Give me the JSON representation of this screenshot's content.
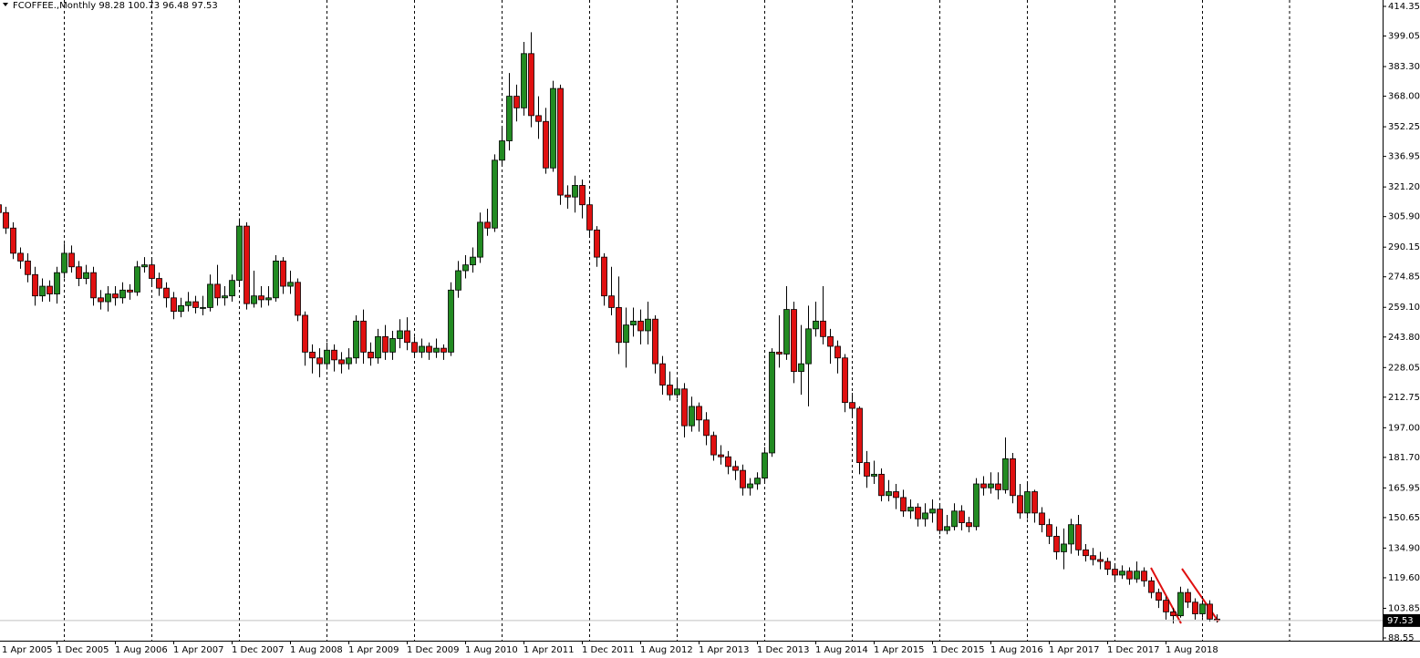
{
  "chart_data": {
    "type": "candlestick",
    "title": "FCOFFEE.,Monthly  98.28 100.73 96.48 97.53",
    "up_color": "#228b22",
    "down_color": "#e01010",
    "categories": [
      "1 Apr 2005",
      null,
      null,
      null,
      null,
      null,
      null,
      null,
      "1 Dec 2005",
      null,
      null,
      null,
      null,
      null,
      null,
      null,
      "1 Aug 2006",
      null,
      null,
      null,
      null,
      null,
      null,
      null,
      "1 Apr 2007",
      null,
      null,
      null,
      null,
      null,
      null,
      null,
      "1 Dec 2007",
      null,
      null,
      null,
      null,
      null,
      null,
      null,
      "1 Aug 2008",
      null,
      null,
      null,
      null,
      null,
      null,
      null,
      "1 Apr 2009",
      null,
      null,
      null,
      null,
      null,
      null,
      null,
      "1 Dec 2009",
      null,
      null,
      null,
      null,
      null,
      null,
      null,
      "1 Aug 2010",
      null,
      null,
      null,
      null,
      null,
      null,
      null,
      "1 Apr 2011",
      null,
      null,
      null,
      null,
      null,
      null,
      null,
      "1 Dec 2011",
      null,
      null,
      null,
      null,
      null,
      null,
      null,
      "1 Aug 2012",
      null,
      null,
      null,
      null,
      null,
      null,
      null,
      "1 Apr 2013",
      null,
      null,
      null,
      null,
      null,
      null,
      null,
      "1 Dec 2013",
      null,
      null,
      null,
      null,
      null,
      null,
      null,
      "1 Aug 2014",
      null,
      null,
      null,
      null,
      null,
      null,
      null,
      "1 Apr 2015",
      null,
      null,
      null,
      null,
      null,
      null,
      null,
      "1 Dec 2015",
      null,
      null,
      null,
      null,
      null,
      null,
      null,
      "1 Aug 2016",
      null,
      null,
      null,
      null,
      null,
      null,
      null,
      "1 Apr 2017",
      null,
      null,
      null,
      null,
      null,
      null,
      null,
      "1 Dec 2017",
      null,
      null,
      null,
      null,
      null,
      null,
      null,
      "1 Aug 2018",
      null,
      null,
      null,
      null,
      null,
      null,
      null
    ],
    "open": [
      312,
      308,
      300,
      287,
      283,
      276,
      265,
      270,
      266,
      277,
      287,
      280,
      274,
      277,
      264,
      262,
      266,
      264,
      268,
      267,
      280,
      281,
      274,
      269,
      264,
      257,
      260,
      262,
      259,
      259,
      271,
      264,
      265,
      273,
      301,
      261,
      265,
      263,
      264,
      283,
      270,
      272,
      255,
      236,
      233,
      230,
      237,
      232,
      230,
      233,
      252,
      236,
      233,
      244,
      236,
      243,
      247,
      241,
      236,
      239,
      236,
      238,
      236,
      268,
      278,
      281,
      285,
      303,
      300,
      335,
      345,
      368,
      362,
      390,
      358,
      355,
      331,
      372,
      317,
      316,
      322,
      312,
      299,
      285,
      265,
      259,
      241,
      250,
      252,
      247,
      253,
      230,
      219,
      214,
      217,
      198,
      208,
      201,
      193,
      183,
      182,
      177,
      175,
      166,
      168,
      171,
      184,
      236,
      235,
      258,
      226,
      230,
      248,
      252,
      244,
      239,
      233,
      210,
      207,
      179,
      172,
      173,
      162,
      164,
      161,
      154,
      156,
      150,
      153,
      155,
      144,
      146,
      154,
      148,
      146,
      168,
      166,
      168,
      165,
      181,
      162,
      153,
      164,
      153,
      147,
      141,
      133,
      137,
      147,
      134,
      131,
      129,
      128,
      124,
      121,
      123,
      119,
      123,
      118,
      112,
      108,
      102,
      100,
      112,
      107,
      101,
      106,
      98.28
    ],
    "high": [
      315,
      311,
      303,
      290,
      287,
      280,
      274,
      273,
      280,
      292,
      291,
      283,
      281,
      280,
      268,
      270,
      270,
      272,
      271,
      283,
      285,
      284,
      277,
      272,
      267,
      264,
      267,
      265,
      265,
      276,
      281,
      270,
      276,
      305,
      303,
      278,
      270,
      270,
      286,
      285,
      278,
      274,
      257,
      240,
      238,
      241,
      240,
      236,
      238,
      255,
      258,
      241,
      248,
      250,
      247,
      253,
      254,
      244,
      243,
      241,
      243,
      240,
      272,
      283,
      286,
      290,
      308,
      310,
      338,
      352,
      380,
      374,
      396,
      401,
      368,
      362,
      376,
      374,
      322,
      327,
      325,
      316,
      301,
      287,
      280,
      275,
      259,
      259,
      258,
      262,
      255,
      234,
      226,
      222,
      220,
      213,
      210,
      205,
      195,
      188,
      185,
      180,
      178,
      171,
      174,
      187,
      238,
      255,
      270,
      262,
      250,
      260,
      262,
      270,
      248,
      242,
      235,
      215,
      208,
      185,
      180,
      176,
      170,
      168,
      165,
      160,
      158,
      158,
      160,
      157,
      152,
      158,
      157,
      151,
      171,
      172,
      174,
      174,
      192,
      184,
      168,
      168,
      165,
      156,
      150,
      146,
      145,
      150,
      152,
      137,
      135,
      133,
      130,
      126,
      126,
      125,
      128,
      125,
      120,
      114,
      110,
      104,
      115,
      114,
      109,
      108,
      108,
      100.73
    ],
    "low": [
      304,
      297,
      284,
      279,
      272,
      260,
      262,
      262,
      261,
      274,
      277,
      270,
      271,
      260,
      258,
      257,
      260,
      261,
      263,
      265,
      277,
      270,
      265,
      259,
      253,
      254,
      257,
      256,
      255,
      257,
      260,
      260,
      262,
      270,
      258,
      259,
      259,
      260,
      262,
      266,
      266,
      252,
      229,
      225,
      223,
      227,
      226,
      225,
      227,
      230,
      230,
      229,
      230,
      232,
      232,
      238,
      237,
      233,
      233,
      232,
      233,
      232,
      234,
      264,
      274,
      277,
      282,
      296,
      298,
      332,
      340,
      355,
      358,
      352,
      346,
      328,
      329,
      312,
      310,
      308,
      305,
      296,
      280,
      260,
      255,
      235,
      228,
      244,
      240,
      240,
      225,
      214,
      211,
      212,
      192,
      195,
      195,
      188,
      180,
      178,
      173,
      170,
      162,
      162,
      165,
      168,
      182,
      228,
      232,
      220,
      214,
      208,
      244,
      240,
      230,
      225,
      205,
      202,
      173,
      166,
      168,
      159,
      159,
      155,
      151,
      150,
      146,
      146,
      148,
      142,
      142,
      144,
      144,
      143,
      144,
      162,
      163,
      160,
      163,
      158,
      150,
      150,
      148,
      143,
      137,
      129,
      124,
      132,
      131,
      128,
      126,
      124,
      121,
      118,
      119,
      116,
      117,
      115,
      109,
      104,
      98,
      96,
      99,
      104,
      98,
      99,
      97,
      96.48
    ],
    "close": [
      308,
      300,
      287,
      283,
      276,
      265,
      270,
      266,
      277,
      287,
      280,
      274,
      277,
      264,
      262,
      266,
      264,
      268,
      267,
      280,
      281,
      274,
      269,
      264,
      257,
      260,
      262,
      259,
      259,
      271,
      264,
      265,
      273,
      301,
      261,
      265,
      263,
      264,
      283,
      270,
      272,
      255,
      236,
      233,
      230,
      237,
      232,
      230,
      233,
      252,
      236,
      233,
      244,
      236,
      243,
      247,
      241,
      236,
      239,
      236,
      238,
      236,
      268,
      278,
      281,
      285,
      303,
      300,
      335,
      345,
      368,
      362,
      390,
      358,
      355,
      331,
      372,
      317,
      316,
      322,
      312,
      299,
      285,
      265,
      259,
      241,
      250,
      252,
      247,
      253,
      230,
      219,
      214,
      217,
      198,
      208,
      201,
      193,
      183,
      182,
      177,
      175,
      166,
      168,
      171,
      184,
      236,
      235,
      258,
      226,
      230,
      248,
      252,
      244,
      239,
      233,
      210,
      207,
      179,
      172,
      173,
      162,
      164,
      161,
      154,
      156,
      150,
      153,
      155,
      144,
      146,
      154,
      148,
      146,
      168,
      166,
      168,
      165,
      181,
      162,
      153,
      164,
      153,
      147,
      141,
      133,
      137,
      147,
      134,
      131,
      129,
      128,
      124,
      121,
      123,
      119,
      123,
      118,
      112,
      108,
      102,
      100,
      112,
      107,
      101,
      106,
      98.28,
      97.53
    ],
    "ylim": [
      88.55,
      414.35
    ],
    "yticks": [
      414.35,
      399.05,
      {
        "value": 383.3,
        "label": "383.30"
      },
      {
        "value": 368,
        "label": "368.00"
      },
      352.25,
      336.95,
      {
        "value": 321.2,
        "label": "321.20"
      },
      {
        "value": 305.9,
        "label": "305.90"
      },
      290.15,
      274.85,
      {
        "value": 259.1,
        "label": "259.10"
      },
      {
        "value": 243.8,
        "label": "243.80"
      },
      228.05,
      212.75,
      {
        "value": 197,
        "label": "197.00"
      },
      {
        "value": 181.7,
        "label": "181.70"
      },
      165.95,
      150.65,
      {
        "value": 134.9,
        "label": "134.90"
      },
      {
        "value": 119.6,
        "label": "119.60"
      },
      103.85,
      88.55
    ]
  }
}
